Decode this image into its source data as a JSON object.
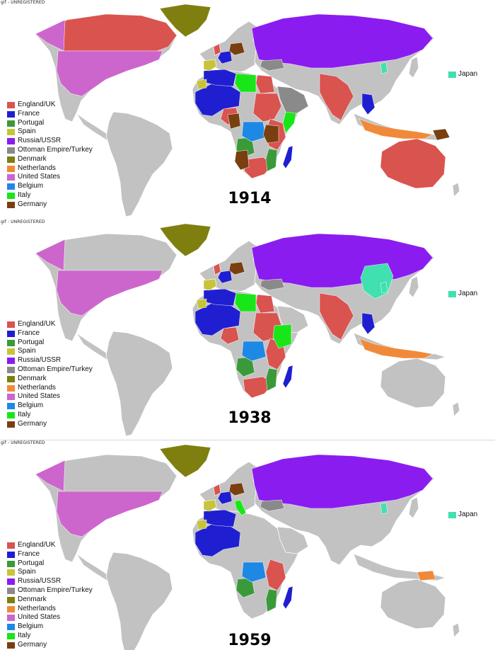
{
  "watermark": "gif - UNREGISTERED",
  "legend": [
    {
      "key": "uk",
      "label": "England/UK",
      "color": "#d9534f"
    },
    {
      "key": "fr",
      "label": "France",
      "color": "#1f1fd1"
    },
    {
      "key": "pt",
      "label": "Portugal",
      "color": "#3a9a3a"
    },
    {
      "key": "es",
      "label": "Spain",
      "color": "#c8c43a"
    },
    {
      "key": "ru",
      "label": "Russia/USSR",
      "color": "#8a1cf0"
    },
    {
      "key": "tr",
      "label": "Ottoman Empire/Turkey",
      "color": "#8a8a8a"
    },
    {
      "key": "dk",
      "label": "Denmark",
      "color": "#7f7f10"
    },
    {
      "key": "nl",
      "label": "Netherlands",
      "color": "#f08a3a"
    },
    {
      "key": "us",
      "label": "United States",
      "color": "#cc66cc"
    },
    {
      "key": "be",
      "label": "Belgium",
      "color": "#1e88e5"
    },
    {
      "key": "it",
      "label": "Italy",
      "color": "#19e619"
    },
    {
      "key": "de",
      "label": "Germany",
      "color": "#7a3f10"
    }
  ],
  "japan": {
    "label": "Japan",
    "color": "#40e0b0"
  },
  "neutral_color": "#c2c2c2",
  "panels": [
    {
      "year": "1914",
      "holders": {
        "canada": "uk",
        "alaska": "us",
        "usa": "us",
        "greenland": "dk",
        "russia": "ru",
        "australia": "uk",
        "india": "uk",
        "egypt": "uk",
        "sudan": "uk",
        "southafrica": "uk",
        "eastafrica": "uk",
        "nigeria": "uk",
        "westafrica_fr": "fr",
        "maghreb_fr": "fr",
        "indochina": "fr",
        "madagascar": "fr",
        "france": "fr",
        "angola": "pt",
        "mozambique": "pt",
        "westsahara": "es",
        "libya": "it",
        "somalia": "it",
        "congo": "be",
        "arabia": "tr",
        "turkey": "tr",
        "german_sw": "de",
        "german_e": "de",
        "cameroon": "de",
        "germany": "de",
        "newguinea_e": "de",
        "indonesia": "nl",
        "korea": "japan",
        "iberia": "es",
        "uk_isl": "uk"
      }
    },
    {
      "year": "1938",
      "holders": {
        "alaska": "us",
        "usa": "us",
        "greenland": "dk",
        "russia": "ru",
        "india": "uk",
        "egypt": "uk",
        "sudan": "uk",
        "southafrica": "uk",
        "eastafrica": "uk",
        "nigeria": "uk",
        "westafrica_fr": "fr",
        "maghreb_fr": "fr",
        "indochina": "fr",
        "madagascar": "fr",
        "france": "fr",
        "angola": "pt",
        "mozambique": "pt",
        "westsahara": "es",
        "libya": "it",
        "ethiopia": "it",
        "congo": "be",
        "turkey": "tr",
        "germany": "de",
        "indonesia": "nl",
        "manchuria": "japan",
        "korea": "japan",
        "iberia": "es",
        "uk_isl": "uk"
      }
    },
    {
      "year": "1959",
      "holders": {
        "alaska": "us",
        "usa": "us",
        "greenland": "dk",
        "russia": "ru",
        "westafrica_fr": "fr",
        "maghreb_fr": "fr",
        "madagascar": "fr",
        "france": "fr",
        "angola": "pt",
        "mozambique": "pt",
        "westsahara": "es",
        "congo": "be",
        "turkey": "tr",
        "germany": "de",
        "eastafrica": "uk",
        "korea": "japan",
        "iberia": "es",
        "newguinea_w": "nl",
        "italy_home": "it",
        "uk_isl": "uk"
      }
    }
  ]
}
